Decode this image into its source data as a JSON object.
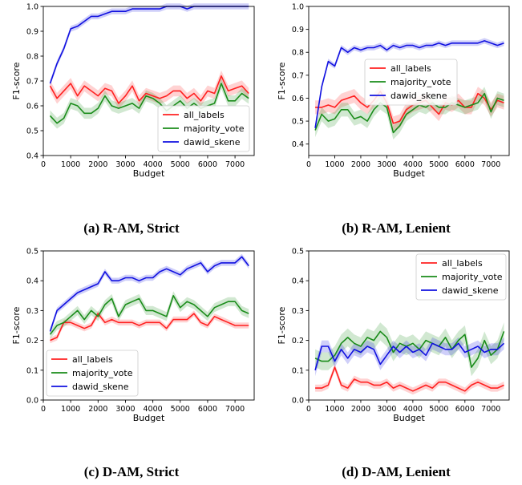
{
  "colors": {
    "all_labels": "#ff2020",
    "majority_vote": "#1a8c1a",
    "dawid_skene": "#1010e0"
  },
  "chart_data": [
    {
      "id": "a",
      "type": "line",
      "caption": "(a) R-AM, Strict",
      "xlabel": "Budget",
      "ylabel": "F1-score",
      "xlim": [
        0,
        7700
      ],
      "ylim": [
        0.4,
        1.0
      ],
      "xticks": [
        0,
        1000,
        2000,
        3000,
        4000,
        5000,
        6000,
        7000
      ],
      "yticks": [
        0.4,
        0.5,
        0.6,
        0.7,
        0.8,
        0.9,
        1.0
      ],
      "ytick_labels": [
        "0.4",
        "0.5",
        "0.6",
        "0.7",
        "0.8",
        "0.9",
        "1.0"
      ],
      "legend_position": "lower-right",
      "x": [
        250,
        500,
        750,
        1000,
        1250,
        1500,
        1750,
        2000,
        2250,
        2500,
        2750,
        3000,
        3250,
        3500,
        3750,
        4000,
        4250,
        4500,
        4750,
        5000,
        5250,
        5500,
        5750,
        6000,
        6250,
        6500,
        6750,
        7000,
        7250,
        7500
      ],
      "series": [
        {
          "name": "all_labels",
          "color_key": "all_labels",
          "band": 0.022,
          "values": [
            0.68,
            0.63,
            0.66,
            0.69,
            0.64,
            0.68,
            0.66,
            0.64,
            0.67,
            0.66,
            0.61,
            0.64,
            0.68,
            0.62,
            0.65,
            0.64,
            0.63,
            0.64,
            0.66,
            0.66,
            0.63,
            0.65,
            0.62,
            0.66,
            0.65,
            0.72,
            0.66,
            0.67,
            0.68,
            0.65
          ]
        },
        {
          "name": "majority_vote",
          "color_key": "majority_vote",
          "band": 0.022,
          "values": [
            0.56,
            0.53,
            0.55,
            0.61,
            0.6,
            0.57,
            0.57,
            0.59,
            0.64,
            0.6,
            0.59,
            0.6,
            0.61,
            0.59,
            0.64,
            0.63,
            0.61,
            0.58,
            0.6,
            0.62,
            0.59,
            0.61,
            0.59,
            0.6,
            0.61,
            0.69,
            0.62,
            0.62,
            0.65,
            0.63
          ]
        },
        {
          "name": "dawid_skene",
          "color_key": "dawid_skene",
          "band": 0.012,
          "values": [
            0.69,
            0.77,
            0.83,
            0.91,
            0.92,
            0.94,
            0.96,
            0.96,
            0.97,
            0.98,
            0.98,
            0.98,
            0.99,
            0.99,
            0.99,
            0.99,
            0.99,
            1.0,
            1.0,
            1.0,
            0.99,
            1.0,
            1.0,
            1.0,
            1.0,
            1.0,
            1.0,
            1.0,
            1.0,
            1.0
          ]
        }
      ]
    },
    {
      "id": "b",
      "type": "line",
      "caption": "(b) R-AM, Lenient",
      "xlabel": "Budget",
      "ylabel": "F1-score",
      "xlim": [
        0,
        7700
      ],
      "ylim": [
        0.35,
        1.0
      ],
      "xticks": [
        0,
        1000,
        2000,
        3000,
        4000,
        5000,
        6000,
        7000
      ],
      "yticks": [
        0.4,
        0.5,
        0.6,
        0.7,
        0.8,
        0.9,
        1.0
      ],
      "ytick_labels": [
        "0.4",
        "0.5",
        "0.6",
        "0.7",
        "0.8",
        "0.9",
        "1.0"
      ],
      "legend_position": "upper-center",
      "x": [
        250,
        500,
        750,
        1000,
        1250,
        1500,
        1750,
        2000,
        2250,
        2500,
        2750,
        3000,
        3250,
        3500,
        3750,
        4000,
        4250,
        4500,
        4750,
        5000,
        5250,
        5500,
        5750,
        6000,
        6250,
        6500,
        6750,
        7000,
        7250,
        7500
      ],
      "series": [
        {
          "name": "all_labels",
          "color_key": "all_labels",
          "band": 0.03,
          "values": [
            0.56,
            0.56,
            0.57,
            0.56,
            0.59,
            0.6,
            0.61,
            0.58,
            0.56,
            0.59,
            0.63,
            0.58,
            0.49,
            0.5,
            0.55,
            0.57,
            0.58,
            0.59,
            0.56,
            0.53,
            0.58,
            0.57,
            0.59,
            0.56,
            0.56,
            0.62,
            0.6,
            0.55,
            0.59,
            0.58
          ]
        },
        {
          "name": "majority_vote",
          "color_key": "majority_vote",
          "band": 0.03,
          "values": [
            0.46,
            0.53,
            0.5,
            0.51,
            0.55,
            0.55,
            0.51,
            0.52,
            0.5,
            0.55,
            0.58,
            0.56,
            0.45,
            0.48,
            0.53,
            0.55,
            0.57,
            0.56,
            0.58,
            0.56,
            0.56,
            0.58,
            0.57,
            0.56,
            0.57,
            0.58,
            0.62,
            0.54,
            0.6,
            0.59
          ]
        },
        {
          "name": "dawid_skene",
          "color_key": "dawid_skene",
          "band": 0.012,
          "values": [
            0.47,
            0.65,
            0.76,
            0.74,
            0.82,
            0.8,
            0.82,
            0.81,
            0.82,
            0.82,
            0.83,
            0.81,
            0.83,
            0.82,
            0.83,
            0.83,
            0.82,
            0.83,
            0.83,
            0.84,
            0.83,
            0.84,
            0.84,
            0.84,
            0.84,
            0.84,
            0.85,
            0.84,
            0.83,
            0.84
          ]
        }
      ]
    },
    {
      "id": "c",
      "type": "line",
      "caption": "(c) D-AM, Strict",
      "xlabel": "Budget",
      "ylabel": "F1-score",
      "xlim": [
        0,
        7700
      ],
      "ylim": [
        0.0,
        0.5
      ],
      "xticks": [
        0,
        1000,
        2000,
        3000,
        4000,
        5000,
        6000,
        7000
      ],
      "yticks": [
        0.0,
        0.1,
        0.2,
        0.3,
        0.4,
        0.5
      ],
      "ytick_labels": [
        "0.0",
        "0.1",
        "0.2",
        "0.3",
        "0.4",
        "0.5"
      ],
      "legend_position": "lower-left",
      "x": [
        250,
        500,
        750,
        1000,
        1250,
        1500,
        1750,
        2000,
        2250,
        2500,
        2750,
        3000,
        3250,
        3500,
        3750,
        4000,
        4250,
        4500,
        4750,
        5000,
        5250,
        5500,
        5750,
        6000,
        6250,
        6500,
        6750,
        7000,
        7250,
        7500
      ],
      "series": [
        {
          "name": "all_labels",
          "color_key": "all_labels",
          "band": 0.01,
          "values": [
            0.2,
            0.21,
            0.26,
            0.26,
            0.25,
            0.24,
            0.25,
            0.29,
            0.26,
            0.27,
            0.26,
            0.26,
            0.26,
            0.25,
            0.26,
            0.26,
            0.26,
            0.24,
            0.27,
            0.27,
            0.27,
            0.29,
            0.26,
            0.25,
            0.28,
            0.27,
            0.26,
            0.25,
            0.25,
            0.25
          ]
        },
        {
          "name": "majority_vote",
          "color_key": "majority_vote",
          "band": 0.015,
          "values": [
            0.22,
            0.25,
            0.26,
            0.28,
            0.3,
            0.27,
            0.3,
            0.28,
            0.32,
            0.34,
            0.28,
            0.32,
            0.33,
            0.34,
            0.3,
            0.3,
            0.29,
            0.28,
            0.35,
            0.31,
            0.33,
            0.32,
            0.3,
            0.28,
            0.31,
            0.32,
            0.33,
            0.33,
            0.3,
            0.29
          ]
        },
        {
          "name": "dawid_skene",
          "color_key": "dawid_skene",
          "band": 0.01,
          "values": [
            0.23,
            0.3,
            0.32,
            0.34,
            0.36,
            0.37,
            0.38,
            0.39,
            0.43,
            0.4,
            0.4,
            0.41,
            0.41,
            0.4,
            0.41,
            0.41,
            0.43,
            0.44,
            0.43,
            0.42,
            0.44,
            0.45,
            0.46,
            0.43,
            0.45,
            0.46,
            0.46,
            0.46,
            0.48,
            0.45
          ]
        }
      ]
    },
    {
      "id": "d",
      "type": "line",
      "caption": "(d) D-AM, Lenient",
      "xlabel": "Budget",
      "ylabel": "F1-score",
      "xlim": [
        0,
        7700
      ],
      "ylim": [
        0.0,
        0.5
      ],
      "xticks": [
        0,
        1000,
        2000,
        3000,
        4000,
        5000,
        6000,
        7000
      ],
      "yticks": [
        0.0,
        0.1,
        0.2,
        0.3,
        0.4,
        0.5
      ],
      "ytick_labels": [
        "0.0",
        "0.1",
        "0.2",
        "0.3",
        "0.4",
        "0.5"
      ],
      "legend_position": "upper-right",
      "x": [
        250,
        500,
        750,
        1000,
        1250,
        1500,
        1750,
        2000,
        2250,
        2500,
        2750,
        3000,
        3250,
        3500,
        3750,
        4000,
        4250,
        4500,
        4750,
        5000,
        5250,
        5500,
        5750,
        6000,
        6250,
        6500,
        6750,
        7000,
        7250,
        7500
      ],
      "series": [
        {
          "name": "all_labels",
          "color_key": "all_labels",
          "band": 0.012,
          "values": [
            0.04,
            0.04,
            0.05,
            0.11,
            0.05,
            0.04,
            0.07,
            0.06,
            0.06,
            0.05,
            0.05,
            0.06,
            0.04,
            0.05,
            0.04,
            0.03,
            0.04,
            0.05,
            0.04,
            0.06,
            0.06,
            0.05,
            0.04,
            0.03,
            0.05,
            0.06,
            0.05,
            0.04,
            0.04,
            0.05
          ]
        },
        {
          "name": "majority_vote",
          "color_key": "majority_vote",
          "band": 0.03,
          "values": [
            0.14,
            0.13,
            0.13,
            0.15,
            0.19,
            0.21,
            0.19,
            0.18,
            0.21,
            0.2,
            0.23,
            0.21,
            0.16,
            0.19,
            0.18,
            0.19,
            0.17,
            0.2,
            0.19,
            0.18,
            0.21,
            0.17,
            0.2,
            0.22,
            0.11,
            0.14,
            0.2,
            0.15,
            0.17,
            0.23
          ]
        },
        {
          "name": "dawid_skene",
          "color_key": "dawid_skene",
          "band": 0.02,
          "values": [
            0.1,
            0.18,
            0.18,
            0.13,
            0.17,
            0.14,
            0.17,
            0.16,
            0.18,
            0.17,
            0.12,
            0.15,
            0.18,
            0.16,
            0.18,
            0.16,
            0.17,
            0.15,
            0.19,
            0.18,
            0.17,
            0.17,
            0.19,
            0.16,
            0.17,
            0.18,
            0.16,
            0.17,
            0.17,
            0.19
          ]
        }
      ]
    }
  ]
}
